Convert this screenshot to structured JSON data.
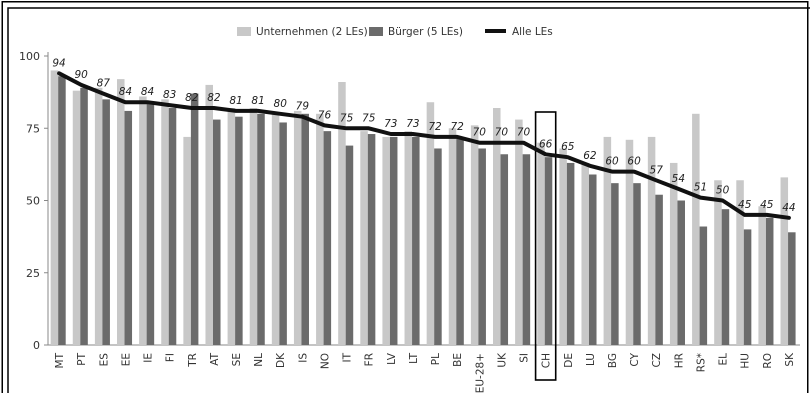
{
  "chart_data": {
    "type": "bar",
    "title": "",
    "xlabel": "",
    "ylabel": "",
    "ylim": [
      0,
      100
    ],
    "yticks": [
      0,
      25,
      50,
      75,
      100
    ],
    "grid": false,
    "legend_position": "top-center",
    "categories": [
      "MT",
      "PT",
      "ES",
      "EE",
      "IE",
      "FI",
      "TR",
      "AT",
      "SE",
      "NL",
      "DK",
      "IS",
      "NO",
      "IT",
      "FR",
      "LV",
      "LT",
      "PL",
      "BE",
      "EU-28+",
      "UK",
      "SI",
      "CH",
      "DE",
      "LU",
      "BG",
      "CY",
      "CZ",
      "HR",
      "RS*",
      "EL",
      "HU",
      "RO",
      "SK"
    ],
    "highlight_category": "CH",
    "series": [
      {
        "name": "Unternehmen (2 LEs)",
        "kind": "bar",
        "color": "#c8c8c8",
        "values": [
          95,
          88,
          89,
          92,
          86,
          85,
          72,
          90,
          82,
          82,
          80,
          81,
          80,
          91,
          74,
          72,
          74,
          84,
          75,
          76,
          82,
          78,
          70,
          68,
          63,
          72,
          71,
          72,
          63,
          80,
          57,
          57,
          48,
          58
        ]
      },
      {
        "name": "Bürger (5 LEs)",
        "kind": "bar",
        "color": "#6b6b6b",
        "values": [
          93,
          89,
          85,
          81,
          84,
          82,
          87,
          78,
          79,
          80,
          77,
          80,
          74,
          69,
          73,
          72,
          72,
          68,
          72,
          68,
          66,
          66,
          65,
          63,
          59,
          56,
          56,
          52,
          50,
          41,
          47,
          40,
          44,
          39
        ]
      },
      {
        "name": "Alle LEs",
        "kind": "line",
        "color": "#111111",
        "values": [
          94,
          90,
          87,
          84,
          84,
          83,
          82,
          82,
          81,
          81,
          80,
          79,
          76,
          75,
          75,
          73,
          73,
          72,
          72,
          70,
          70,
          70,
          66,
          65,
          62,
          60,
          60,
          57,
          54,
          51,
          50,
          45,
          45,
          44
        ]
      }
    ],
    "value_labels": [
      "94",
      "90",
      "87",
      "84",
      "84",
      "83",
      "82",
      "82",
      "81",
      "81",
      "80",
      "79",
      "76",
      "75",
      "75",
      "73",
      "73",
      "72",
      "72",
      "70",
      "70",
      "70",
      "66",
      "65",
      "62",
      "60",
      "60",
      "57",
      "54",
      "51",
      "50",
      "45",
      "45",
      "44"
    ]
  }
}
